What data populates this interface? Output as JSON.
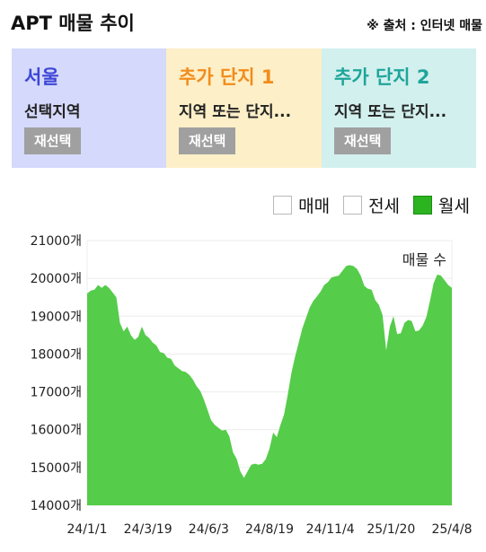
{
  "header": {
    "title": "APT 매물 추이",
    "source": "※ 출처 : 인터넷 매물"
  },
  "panels": [
    {
      "name": "서울",
      "sub": "선택지역",
      "button": "재선택",
      "color": "#3c46d6"
    },
    {
      "name": "추가 단지 1",
      "sub": "지역 또는 단지...",
      "button": "재선택",
      "color": "#f28c1a"
    },
    {
      "name": "추가 단지 2",
      "sub": "지역 또는 단지...",
      "button": "재선택",
      "color": "#1ea59a"
    }
  ],
  "legend": [
    {
      "label": "매매",
      "checked": false
    },
    {
      "label": "전세",
      "checked": false
    },
    {
      "label": "월세",
      "checked": true
    }
  ],
  "chart_data": {
    "type": "area",
    "annotation": "매물 수",
    "y_ticks": [
      "21000개",
      "20000개",
      "19000개",
      "18000개",
      "17000개",
      "16000개",
      "15000개",
      "14000개"
    ],
    "x_ticks": [
      "24/1/1",
      "24/3/19",
      "24/6/3",
      "24/8/19",
      "24/11/4",
      "25/1/20",
      "25/4/8"
    ],
    "ylim": [
      14000,
      21000
    ],
    "series_color": "#55cc4a",
    "grid": true,
    "points": [
      [
        0,
        19600
      ],
      [
        4,
        19650
      ],
      [
        8,
        19700
      ],
      [
        12,
        19800
      ],
      [
        16,
        19750
      ],
      [
        20,
        19800
      ],
      [
        24,
        19750
      ],
      [
        28,
        19600
      ],
      [
        32,
        19500
      ],
      [
        36,
        18800
      ],
      [
        40,
        18600
      ],
      [
        44,
        18700
      ],
      [
        48,
        18500
      ],
      [
        52,
        18350
      ],
      [
        56,
        18450
      ],
      [
        60,
        18700
      ],
      [
        64,
        18500
      ],
      [
        68,
        18400
      ],
      [
        72,
        18300
      ],
      [
        76,
        18200
      ],
      [
        80,
        18050
      ],
      [
        84,
        18000
      ],
      [
        88,
        17900
      ],
      [
        92,
        17850
      ],
      [
        96,
        17700
      ],
      [
        100,
        17600
      ],
      [
        104,
        17550
      ],
      [
        108,
        17500
      ],
      [
        112,
        17450
      ],
      [
        116,
        17300
      ],
      [
        120,
        17150
      ],
      [
        124,
        17000
      ],
      [
        128,
        16800
      ],
      [
        132,
        16500
      ],
      [
        136,
        16250
      ],
      [
        140,
        16100
      ],
      [
        144,
        16050
      ],
      [
        148,
        15950
      ],
      [
        152,
        16000
      ],
      [
        156,
        15800
      ],
      [
        160,
        15400
      ],
      [
        164,
        15200
      ],
      [
        168,
        14900
      ],
      [
        172,
        14700
      ],
      [
        176,
        14900
      ],
      [
        180,
        15050
      ],
      [
        184,
        15100
      ],
      [
        188,
        15050
      ],
      [
        192,
        15100
      ],
      [
        196,
        15200
      ],
      [
        200,
        15500
      ],
      [
        204,
        15900
      ],
      [
        208,
        15800
      ],
      [
        212,
        16100
      ],
      [
        216,
        16400
      ],
      [
        220,
        16900
      ],
      [
        224,
        17500
      ],
      [
        228,
        17900
      ],
      [
        232,
        18300
      ],
      [
        236,
        18650
      ],
      [
        240,
        18950
      ],
      [
        244,
        19200
      ],
      [
        248,
        19400
      ],
      [
        252,
        19500
      ],
      [
        256,
        19650
      ],
      [
        260,
        19800
      ],
      [
        264,
        19900
      ],
      [
        268,
        20000
      ],
      [
        272,
        20050
      ],
      [
        276,
        20050
      ],
      [
        280,
        20200
      ],
      [
        284,
        20300
      ],
      [
        288,
        20350
      ],
      [
        292,
        20300
      ],
      [
        296,
        20250
      ],
      [
        300,
        20050
      ],
      [
        304,
        19800
      ],
      [
        308,
        19700
      ],
      [
        312,
        19700
      ],
      [
        316,
        19400
      ],
      [
        320,
        19300
      ],
      [
        324,
        19000
      ],
      [
        328,
        18100
      ],
      [
        332,
        18700
      ],
      [
        336,
        19000
      ],
      [
        340,
        18500
      ],
      [
        344,
        18550
      ],
      [
        348,
        18800
      ],
      [
        352,
        18900
      ],
      [
        356,
        18850
      ],
      [
        360,
        18600
      ],
      [
        364,
        18600
      ],
      [
        368,
        18750
      ],
      [
        372,
        18950
      ],
      [
        376,
        19400
      ],
      [
        380,
        19850
      ],
      [
        384,
        20100
      ],
      [
        388,
        20050
      ],
      [
        392,
        19950
      ],
      [
        396,
        19800
      ],
      [
        400,
        19750
      ]
    ]
  }
}
